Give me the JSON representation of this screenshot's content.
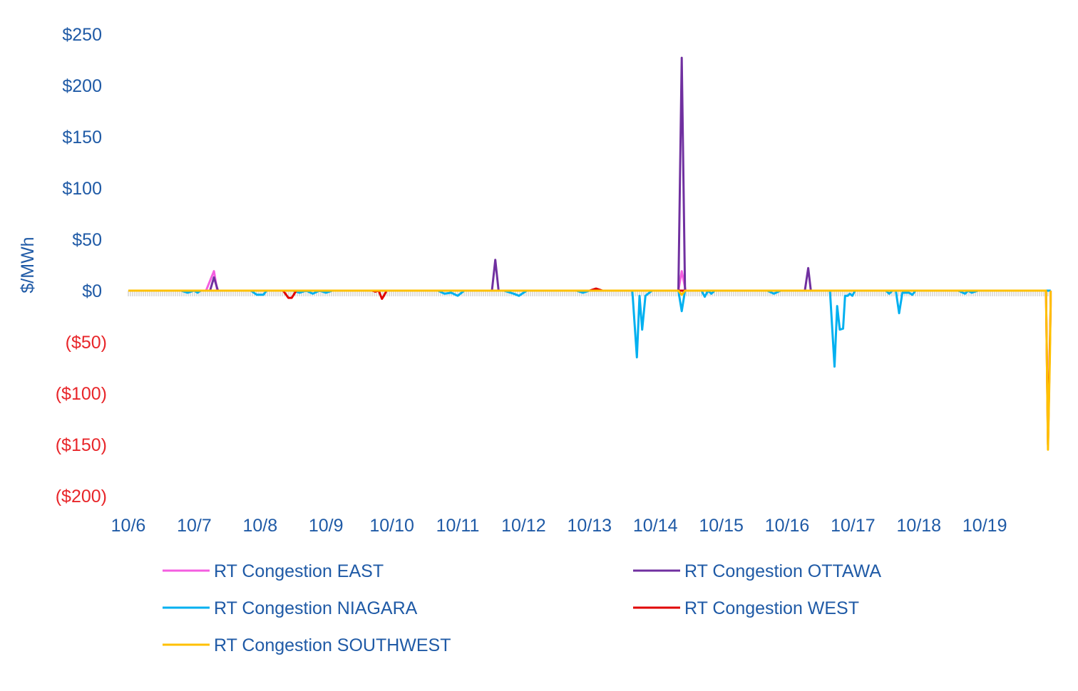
{
  "chart_data": {
    "type": "line",
    "ylabel": "$/MWh",
    "ylim": [
      -200,
      250
    ],
    "y_ticks": [
      {
        "value": 250,
        "label": "$250"
      },
      {
        "value": 200,
        "label": "$200"
      },
      {
        "value": 150,
        "label": "$150"
      },
      {
        "value": 100,
        "label": "$100"
      },
      {
        "value": 50,
        "label": "$50"
      },
      {
        "value": 0,
        "label": "$0"
      },
      {
        "value": -50,
        "label": "($50)"
      },
      {
        "value": -100,
        "label": "($100)"
      },
      {
        "value": -150,
        "label": "($150)"
      },
      {
        "value": -200,
        "label": "($200)"
      }
    ],
    "x_ticks": [
      "10/6",
      "10/7",
      "10/8",
      "10/9",
      "10/10",
      "10/11",
      "10/12",
      "10/13",
      "10/14",
      "10/15",
      "10/16",
      "10/17",
      "10/18",
      "10/19"
    ],
    "x_range": [
      0,
      14
    ],
    "colors": {
      "positive_tick": "#1f5aa6",
      "negative_tick": "#e8262a",
      "axis_label": "#1f5aa6",
      "baseline": "#bfbfbf"
    },
    "legend_placement": "bottom",
    "series": [
      {
        "name": "RT Congestion EAST",
        "color": "#f45ee0",
        "points": [
          [
            0,
            0
          ],
          [
            1.18,
            0
          ],
          [
            1.3,
            19
          ],
          [
            1.35,
            0
          ],
          [
            8.35,
            0
          ],
          [
            8.4,
            19
          ],
          [
            8.46,
            0
          ],
          [
            14,
            0
          ]
        ]
      },
      {
        "name": "RT Congestion OTTAWA",
        "color": "#7030a0",
        "points": [
          [
            0,
            0
          ],
          [
            1.24,
            0
          ],
          [
            1.3,
            13
          ],
          [
            1.36,
            0
          ],
          [
            5.52,
            0
          ],
          [
            5.57,
            30
          ],
          [
            5.62,
            0
          ],
          [
            8.35,
            0
          ],
          [
            8.4,
            227
          ],
          [
            8.45,
            0
          ],
          [
            10.27,
            0
          ],
          [
            10.32,
            22
          ],
          [
            10.36,
            0
          ],
          [
            14,
            0
          ]
        ]
      },
      {
        "name": "RT Congestion NIAGARA",
        "color": "#00b0f0",
        "points": [
          [
            0,
            0
          ],
          [
            0.8,
            0
          ],
          [
            0.9,
            -2
          ],
          [
            1.0,
            0
          ],
          [
            1.05,
            -2
          ],
          [
            1.1,
            0
          ],
          [
            1.86,
            0
          ],
          [
            1.95,
            -4
          ],
          [
            2.05,
            -4
          ],
          [
            2.1,
            0
          ],
          [
            2.5,
            0
          ],
          [
            2.6,
            -2
          ],
          [
            2.7,
            0
          ],
          [
            2.8,
            -3
          ],
          [
            2.9,
            0
          ],
          [
            3.0,
            -2
          ],
          [
            3.1,
            0
          ],
          [
            4.7,
            0
          ],
          [
            4.8,
            -3
          ],
          [
            4.9,
            -2
          ],
          [
            5.0,
            -5
          ],
          [
            5.1,
            0
          ],
          [
            5.7,
            0
          ],
          [
            5.85,
            -3
          ],
          [
            5.93,
            -5
          ],
          [
            6.0,
            -2
          ],
          [
            6.05,
            0
          ],
          [
            6.8,
            0
          ],
          [
            6.9,
            -2
          ],
          [
            7.0,
            0
          ],
          [
            7.65,
            0
          ],
          [
            7.72,
            -65
          ],
          [
            7.76,
            -5
          ],
          [
            7.8,
            -38
          ],
          [
            7.85,
            -5
          ],
          [
            7.95,
            0
          ],
          [
            8.35,
            0
          ],
          [
            8.4,
            -20
          ],
          [
            8.45,
            0
          ],
          [
            8.7,
            0
          ],
          [
            8.75,
            -6
          ],
          [
            8.8,
            0
          ],
          [
            8.85,
            -3
          ],
          [
            8.9,
            0
          ],
          [
            9.0,
            0
          ],
          [
            9.7,
            0
          ],
          [
            9.8,
            -3
          ],
          [
            9.9,
            0
          ],
          [
            10.65,
            0
          ],
          [
            10.72,
            -74
          ],
          [
            10.76,
            -15
          ],
          [
            10.8,
            -38
          ],
          [
            10.85,
            -37
          ],
          [
            10.88,
            -5
          ],
          [
            10.92,
            -5
          ],
          [
            10.95,
            -3
          ],
          [
            10.99,
            -5
          ],
          [
            11.03,
            0
          ],
          [
            11.5,
            0
          ],
          [
            11.55,
            -3
          ],
          [
            11.6,
            0
          ],
          [
            11.65,
            0
          ],
          [
            11.7,
            -22
          ],
          [
            11.75,
            -2
          ],
          [
            11.85,
            -2
          ],
          [
            11.9,
            -4
          ],
          [
            11.95,
            0
          ],
          [
            12.6,
            0
          ],
          [
            12.7,
            -3
          ],
          [
            12.75,
            0
          ],
          [
            12.8,
            -2
          ],
          [
            12.9,
            0
          ],
          [
            14,
            0
          ]
        ]
      },
      {
        "name": "RT Congestion WEST",
        "color": "#e00000",
        "points": [
          [
            0,
            0
          ],
          [
            2.35,
            0
          ],
          [
            2.43,
            -7
          ],
          [
            2.48,
            -7
          ],
          [
            2.55,
            0
          ],
          [
            3.7,
            0
          ],
          [
            3.75,
            -1
          ],
          [
            3.8,
            0
          ],
          [
            3.85,
            -8
          ],
          [
            3.88,
            -5
          ],
          [
            3.92,
            0
          ],
          [
            7.0,
            0
          ],
          [
            7.1,
            2
          ],
          [
            7.2,
            0
          ],
          [
            13.93,
            0
          ],
          [
            13.96,
            -150
          ],
          [
            14.0,
            -15
          ],
          [
            14,
            0
          ]
        ]
      },
      {
        "name": "RT Congestion SOUTHWEST",
        "color": "#ffc000",
        "points": [
          [
            0,
            0
          ],
          [
            8.35,
            0
          ],
          [
            8.4,
            -4
          ],
          [
            8.45,
            0
          ],
          [
            13.9,
            0
          ],
          [
            13.93,
            0
          ],
          [
            13.96,
            -155
          ],
          [
            13.99,
            -60
          ],
          [
            14.0,
            -10
          ],
          [
            14,
            0
          ]
        ]
      }
    ]
  }
}
